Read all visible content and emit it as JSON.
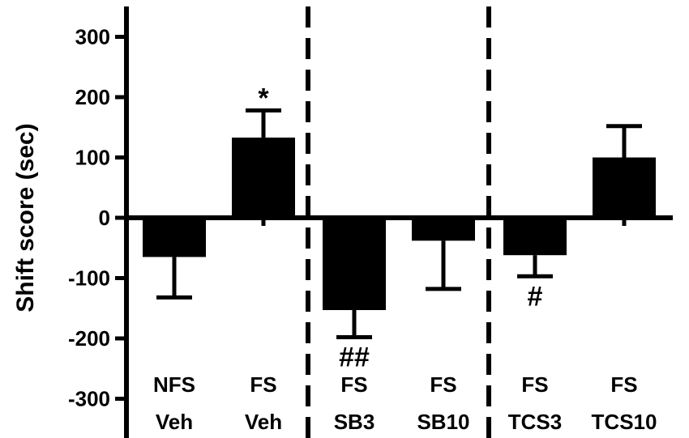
{
  "chart_data": {
    "type": "bar",
    "ylabel": "Shift score (sec)",
    "ylim": [
      -300,
      300
    ],
    "yticks": [
      300,
      200,
      100,
      0,
      -100,
      -200,
      -300
    ],
    "grid": false,
    "categories": [
      {
        "top": "NFS",
        "bottom": "Veh"
      },
      {
        "top": "FS",
        "bottom": "Veh"
      },
      {
        "top": "FS",
        "bottom": "SB3"
      },
      {
        "top": "FS",
        "bottom": "SB10"
      },
      {
        "top": "FS",
        "bottom": "TCS3"
      },
      {
        "top": "FS",
        "bottom": "TCS10"
      }
    ],
    "values": [
      -65,
      133,
      -153,
      -38,
      -62,
      100
    ],
    "errors": [
      67,
      45,
      45,
      80,
      35,
      52
    ],
    "annotations": [
      "",
      "*",
      "##",
      "",
      "#",
      ""
    ],
    "group_separators_after": [
      2,
      4
    ],
    "colors": {
      "bar": "#000000",
      "axis": "#000000"
    }
  }
}
